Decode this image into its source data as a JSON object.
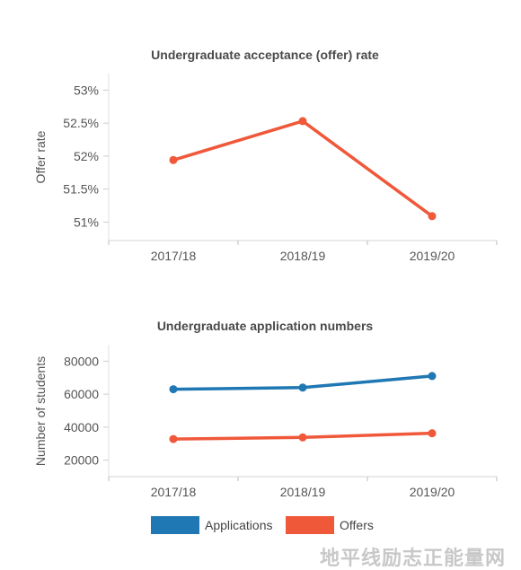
{
  "watermark": "地平线励志正能量网",
  "chart_data": [
    {
      "type": "line",
      "title": "Undergraduate acceptance (offer) rate",
      "xlabel": "",
      "ylabel": "Offer rate",
      "categories": [
        "2017/18",
        "2018/19",
        "2019/20"
      ],
      "y_ticks": [
        51,
        51.5,
        52,
        52.5,
        53
      ],
      "y_tick_labels": [
        "51%",
        "51.5%",
        "52%",
        "52.5%",
        "53%"
      ],
      "ylim": [
        50.72,
        53.25
      ],
      "grid": false,
      "series": [
        {
          "values": [
            51.94,
            52.53,
            51.09
          ],
          "color": "#f0583a"
        }
      ]
    },
    {
      "type": "line",
      "title": "Undergraduate application numbers",
      "xlabel": "",
      "ylabel": "Number of students",
      "categories": [
        "2017/18",
        "2018/19",
        "2019/20"
      ],
      "y_ticks": [
        20000,
        40000,
        60000,
        80000
      ],
      "y_tick_labels": [
        "20000",
        "40000",
        "60000",
        "80000"
      ],
      "ylim": [
        10000,
        90000
      ],
      "grid": false,
      "legend_position": "bottom-center",
      "series": [
        {
          "name": "Applications",
          "values": [
            63000,
            64000,
            71000
          ],
          "color": "#1f77b4"
        },
        {
          "name": "Offers",
          "values": [
            32800,
            33800,
            36300
          ],
          "color": "#f0583a"
        }
      ]
    }
  ]
}
